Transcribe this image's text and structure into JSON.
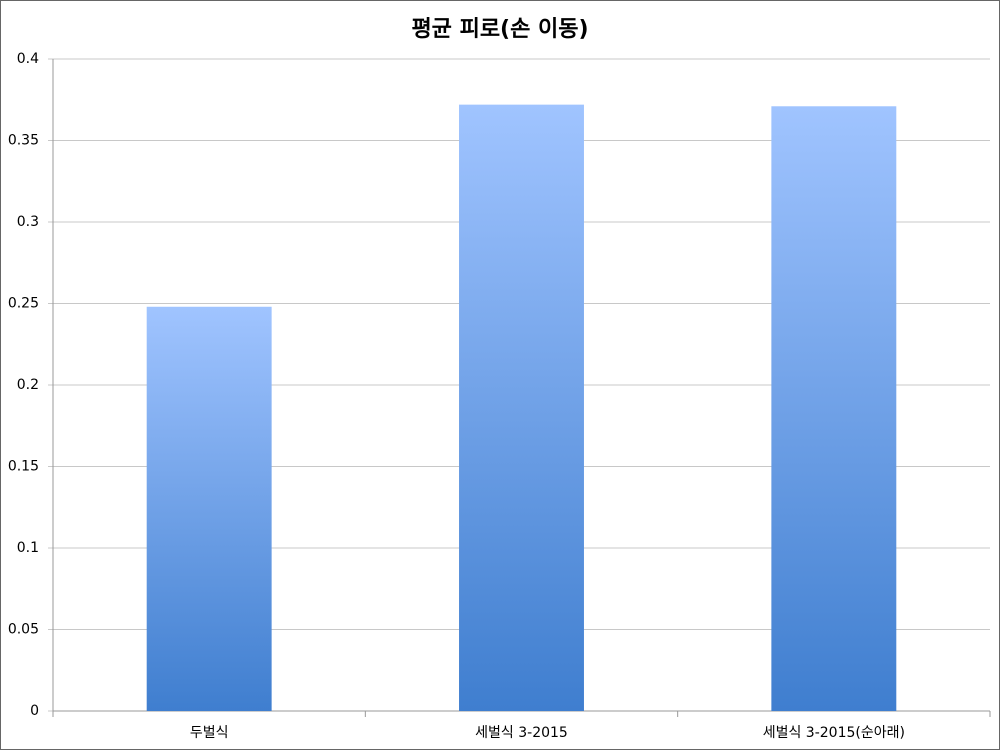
{
  "chart_data": {
    "type": "bar",
    "title": "평균 피로(손 이동)",
    "categories": [
      "두벌식",
      "세벌식 3-2015",
      "세벌식 3-2015(순아래)"
    ],
    "values": [
      0.248,
      0.372,
      0.371
    ],
    "gradient": [
      "#a0c4ff",
      "#3f7ecf"
    ],
    "ylim": [
      0,
      0.4
    ],
    "yticks": [
      0,
      0.05,
      0.1,
      0.15,
      0.2,
      0.25,
      0.3,
      0.35,
      0.4
    ],
    "grid": true
  }
}
